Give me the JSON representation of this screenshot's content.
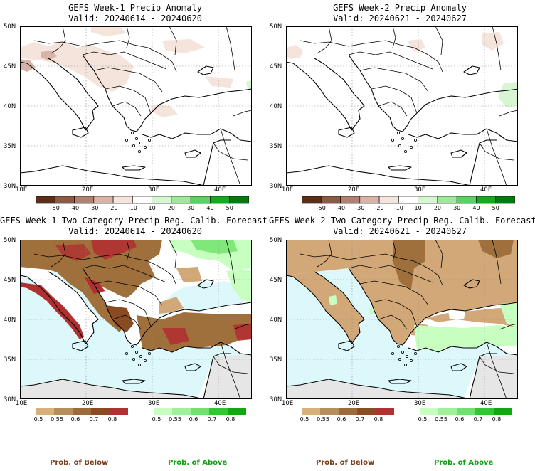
{
  "panels": [
    {
      "title": "GEFS Week-1 Precip Anomaly",
      "valid": "Valid: 20240614 - 20240620"
    },
    {
      "title": "GEFS Week-2 Precip Anomaly",
      "valid": "Valid: 20240621 - 20240627"
    },
    {
      "title": "GEFS Week-1 Two-Category Precip Reg. Calib. Forecast",
      "valid": "Valid: 20240614 - 20240620"
    },
    {
      "title": "GEFS Week-2 Two-Category Precip Reg. Calib. Forecast",
      "valid": "Valid: 20240621 - 20240627"
    }
  ],
  "axes": {
    "lat_labels": [
      "50N",
      "45N",
      "40N",
      "35N",
      "30N"
    ],
    "lon_labels": [
      "10E",
      "20E",
      "30E",
      "40E"
    ]
  },
  "anomaly_colorbar": {
    "ticks": [
      "-50",
      "-40",
      "-30",
      "-20",
      "-10",
      "10",
      "20",
      "30",
      "40",
      "50"
    ],
    "colors": [
      "#5a2e1a",
      "#8a5a44",
      "#b08072",
      "#d8b4a8",
      "#f4e4dc",
      "#ffffff",
      "#d6f5d0",
      "#a0e89a",
      "#5cd060",
      "#18a820",
      "#087810"
    ]
  },
  "prob_colorbar": {
    "below_ticks": [
      "0.5",
      "0.55",
      "0.6",
      "0.7",
      "0.8"
    ],
    "above_ticks": [
      "0.5",
      "0.55",
      "0.6",
      "0.7",
      "0.8"
    ],
    "below_colors": [
      "#d8b07c",
      "#b88e5e",
      "#9c6a3c",
      "#8a4a22",
      "#b23030"
    ],
    "above_colors": [
      "#c6ffc0",
      "#a0f09a",
      "#70e070",
      "#30c830",
      "#10a810"
    ]
  },
  "labels": {
    "prob_below": "Prob. of Below",
    "prob_above": "Prob. of Above"
  },
  "colors": {
    "sea": "#dcf8fa",
    "land_missing": "#e6e6e6",
    "below_light": "#d2a878",
    "below_mid": "#a0703c",
    "below_dark": "#8a4a22",
    "below_red": "#b03030",
    "above_light": "#c6ffc0",
    "above_mid": "#80e878"
  }
}
